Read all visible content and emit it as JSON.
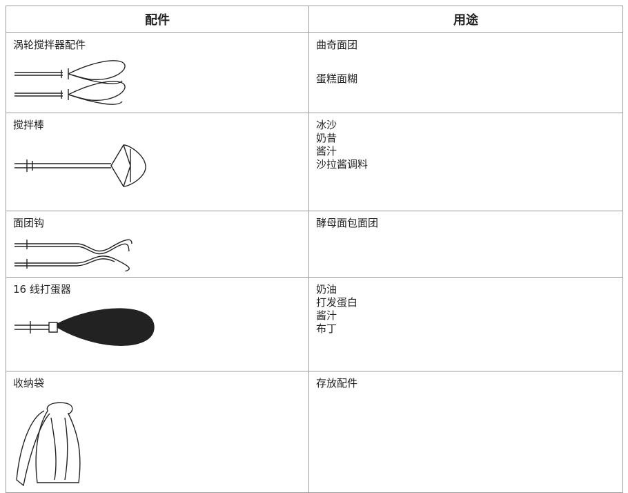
{
  "table": {
    "header": [
      "配件",
      "用途"
    ],
    "rows": [
      [
        "涡轮搅拌器配件",
        [
          "曲奇面团",
          "蛋糕面糊"
        ]
      ],
      [
        "搅拌棒",
        [
          "冰沙",
          "奶昔",
          "酱汁",
          "沙拉酱调料"
        ]
      ],
      [
        "面团钩",
        [
          "酵母面包面团"
        ]
      ],
      [
        "16 线打蛋器",
        [
          "奶油",
          "打发蛋白",
          "酱汁",
          "布丁"
        ]
      ],
      [
        "收纳袋",
        [
          "存放配件"
        ]
      ]
    ]
  }
}
